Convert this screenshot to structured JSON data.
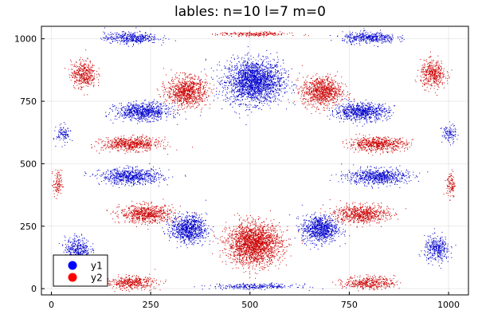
{
  "chart_data": {
    "type": "scatter",
    "title": "lables: n=10 l=7 m=0",
    "xlabel": "",
    "ylabel": "",
    "xlim": [
      -25,
      1050
    ],
    "ylim": [
      -25,
      1050
    ],
    "x_ticks": [
      0,
      250,
      500,
      750,
      1000
    ],
    "y_ticks": [
      0,
      250,
      500,
      750,
      1000
    ],
    "x_tick_labels": [
      "0",
      "250",
      "500",
      "750",
      "1000"
    ],
    "y_tick_labels": [
      "0",
      "250",
      "500",
      "750",
      "1000"
    ],
    "grid": true,
    "legend_position": "bottom-left",
    "series": [
      {
        "name": "y1",
        "color": "#0000cc",
        "clusters": [
          {
            "cx": 510,
            "cy": 830,
            "rx": 80,
            "ry": 95,
            "weight": 3.0
          },
          {
            "cx": 200,
            "cy": 1005,
            "rx": 75,
            "ry": 25,
            "weight": 0.6
          },
          {
            "cx": 800,
            "cy": 1005,
            "rx": 75,
            "ry": 25,
            "weight": 0.6
          },
          {
            "cx": 230,
            "cy": 710,
            "rx": 75,
            "ry": 38,
            "weight": 1.1
          },
          {
            "cx": 780,
            "cy": 710,
            "rx": 75,
            "ry": 38,
            "weight": 1.1
          },
          {
            "cx": 200,
            "cy": 450,
            "rx": 85,
            "ry": 35,
            "weight": 1.0
          },
          {
            "cx": 820,
            "cy": 450,
            "rx": 85,
            "ry": 35,
            "weight": 1.0
          },
          {
            "cx": 345,
            "cy": 240,
            "rx": 50,
            "ry": 60,
            "weight": 1.2
          },
          {
            "cx": 675,
            "cy": 240,
            "rx": 50,
            "ry": 60,
            "weight": 1.2
          },
          {
            "cx": 65,
            "cy": 160,
            "rx": 35,
            "ry": 55,
            "weight": 0.5
          },
          {
            "cx": 970,
            "cy": 160,
            "rx": 35,
            "ry": 55,
            "weight": 0.5
          },
          {
            "cx": 510,
            "cy": 10,
            "rx": 120,
            "ry": 12,
            "weight": 0.4
          },
          {
            "cx": 30,
            "cy": 620,
            "rx": 20,
            "ry": 40,
            "weight": 0.15
          },
          {
            "cx": 1000,
            "cy": 620,
            "rx": 20,
            "ry": 40,
            "weight": 0.15
          }
        ]
      },
      {
        "name": "y2",
        "color": "#cc0000",
        "clusters": [
          {
            "cx": 510,
            "cy": 180,
            "rx": 75,
            "ry": 90,
            "weight": 3.0
          },
          {
            "cx": 340,
            "cy": 790,
            "rx": 55,
            "ry": 65,
            "weight": 1.3
          },
          {
            "cx": 680,
            "cy": 790,
            "rx": 55,
            "ry": 65,
            "weight": 1.3
          },
          {
            "cx": 80,
            "cy": 860,
            "rx": 35,
            "ry": 60,
            "weight": 0.6
          },
          {
            "cx": 960,
            "cy": 860,
            "rx": 35,
            "ry": 60,
            "weight": 0.6
          },
          {
            "cx": 200,
            "cy": 580,
            "rx": 80,
            "ry": 30,
            "weight": 0.9
          },
          {
            "cx": 820,
            "cy": 580,
            "rx": 80,
            "ry": 30,
            "weight": 0.9
          },
          {
            "cx": 240,
            "cy": 300,
            "rx": 75,
            "ry": 40,
            "weight": 1.0
          },
          {
            "cx": 780,
            "cy": 300,
            "rx": 75,
            "ry": 40,
            "weight": 1.0
          },
          {
            "cx": 200,
            "cy": 25,
            "rx": 70,
            "ry": 28,
            "weight": 0.6
          },
          {
            "cx": 800,
            "cy": 25,
            "rx": 70,
            "ry": 28,
            "weight": 0.6
          },
          {
            "cx": 510,
            "cy": 1020,
            "rx": 100,
            "ry": 10,
            "weight": 0.3
          },
          {
            "cx": 15,
            "cy": 420,
            "rx": 12,
            "ry": 60,
            "weight": 0.15
          },
          {
            "cx": 1005,
            "cy": 420,
            "rx": 12,
            "ry": 60,
            "weight": 0.15
          }
        ]
      }
    ]
  }
}
